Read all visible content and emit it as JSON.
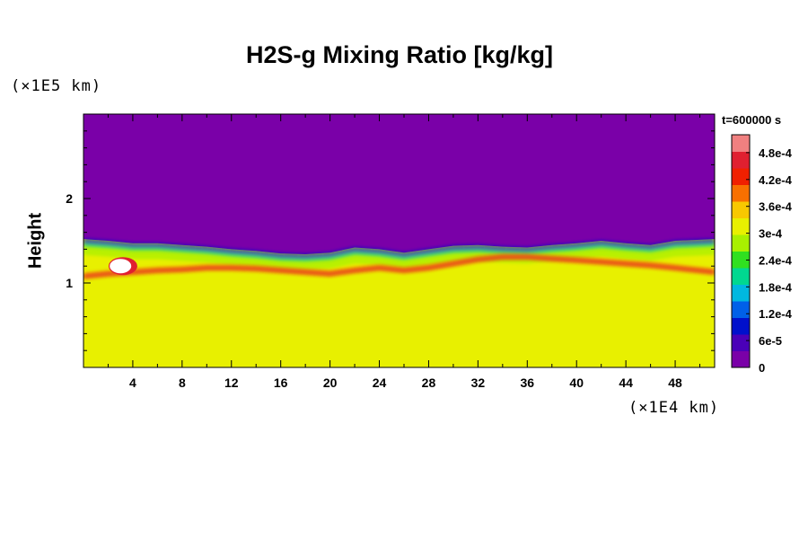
{
  "chart_data": {
    "type": "heatmap",
    "title": "H2S-g Mixing Ratio [kg/kg]",
    "ylabel": "Height",
    "y_unit": "(×1E5 km)",
    "x_unit": "(×1E4 km)",
    "time_label": "t=600000 s",
    "xlim": [
      0,
      51.2
    ],
    "ylim": [
      0,
      3.0
    ],
    "x_ticks": [
      4,
      8,
      12,
      16,
      20,
      24,
      28,
      32,
      36,
      40,
      44,
      48
    ],
    "x_tick_labels": [
      "4",
      "8",
      "12",
      "16",
      "20",
      "24",
      "28",
      "32",
      "36",
      "40",
      "44",
      "48"
    ],
    "y_ticks": [
      1,
      2
    ],
    "y_tick_labels": [
      "1",
      "2"
    ],
    "colorbar": {
      "range": [
        0,
        0.00052
      ],
      "tick_values": [
        0,
        6e-05,
        0.00012,
        0.00018,
        0.00024,
        0.0003,
        0.00036,
        0.00042,
        0.00048
      ],
      "tick_labels": [
        "0",
        "6e-5",
        "1.2e-4",
        "1.8e-4",
        "2.4e-4",
        "3e-4",
        "3.6e-4",
        "4.2e-4",
        "4.8e-4"
      ],
      "colors": [
        "#7a00a8",
        "#4a00b8",
        "#0010cc",
        "#0060e8",
        "#00b8e0",
        "#00d890",
        "#30e020",
        "#a8f000",
        "#e8f000",
        "#f8c800",
        "#f87000",
        "#f02000",
        "#e02030",
        "#f08080"
      ]
    },
    "profile": {
      "x": [
        0,
        2,
        4,
        6,
        8,
        10,
        12,
        14,
        16,
        18,
        20,
        22,
        24,
        26,
        28,
        30,
        32,
        34,
        36,
        38,
        40,
        42,
        44,
        46,
        48,
        51.2
      ],
      "top_height": [
        1.52,
        1.5,
        1.47,
        1.47,
        1.45,
        1.43,
        1.4,
        1.38,
        1.35,
        1.34,
        1.36,
        1.42,
        1.4,
        1.36,
        1.4,
        1.44,
        1.45,
        1.43,
        1.42,
        1.45,
        1.47,
        1.5,
        1.47,
        1.45,
        1.5,
        1.52
      ],
      "base_height": [
        1.05,
        1.08,
        1.1,
        1.12,
        1.13,
        1.15,
        1.15,
        1.14,
        1.12,
        1.1,
        1.08,
        1.12,
        1.15,
        1.12,
        1.15,
        1.2,
        1.25,
        1.28,
        1.28,
        1.26,
        1.24,
        1.22,
        1.2,
        1.18,
        1.15,
        1.1
      ],
      "upper_value": 0,
      "lower_value": 0.00033
    }
  }
}
